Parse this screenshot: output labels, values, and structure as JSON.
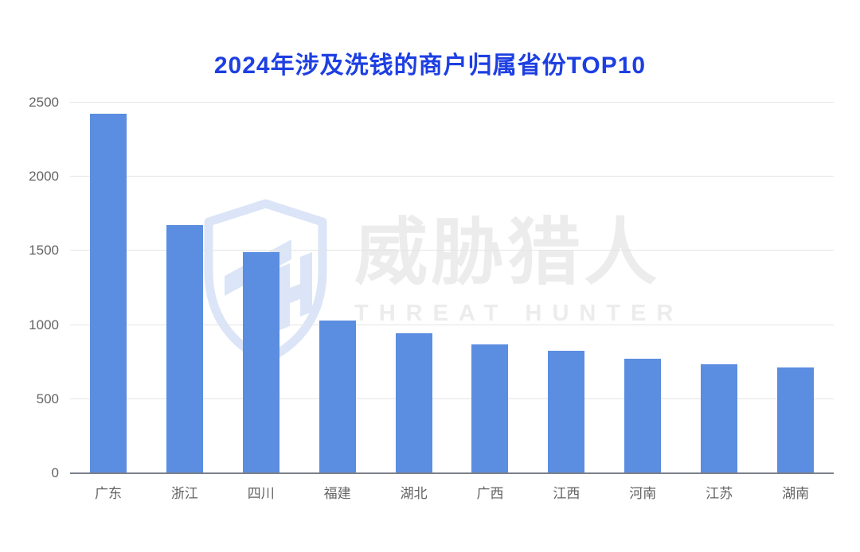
{
  "watermark": {
    "cn": "威胁猎人",
    "en": "THREAT HUNTER",
    "logo": "threat-hunter-shield-logo"
  },
  "colors": {
    "title": "#1d3fe2",
    "bar": "#5b8de0",
    "axis_label": "#636363",
    "gridline": "#e4e4e4",
    "baseline": "#7b8089",
    "watermark_text": "#ececec",
    "watermark_logo": "#dbe5f7"
  },
  "chart_data": {
    "type": "bar",
    "title": "2024年涉及洗钱的商户归属省份TOP10",
    "categories": [
      "广东",
      "浙江",
      "四川",
      "福建",
      "湖北",
      "广西",
      "江西",
      "河南",
      "江苏",
      "湖南"
    ],
    "values": [
      2425,
      1675,
      1490,
      1030,
      945,
      870,
      825,
      775,
      735,
      715
    ],
    "xlabel": "",
    "ylabel": "",
    "ylim": [
      0,
      2500
    ],
    "yticks": [
      0,
      500,
      1000,
      1500,
      2000,
      2500
    ],
    "grid": true,
    "legend_position": "none"
  }
}
